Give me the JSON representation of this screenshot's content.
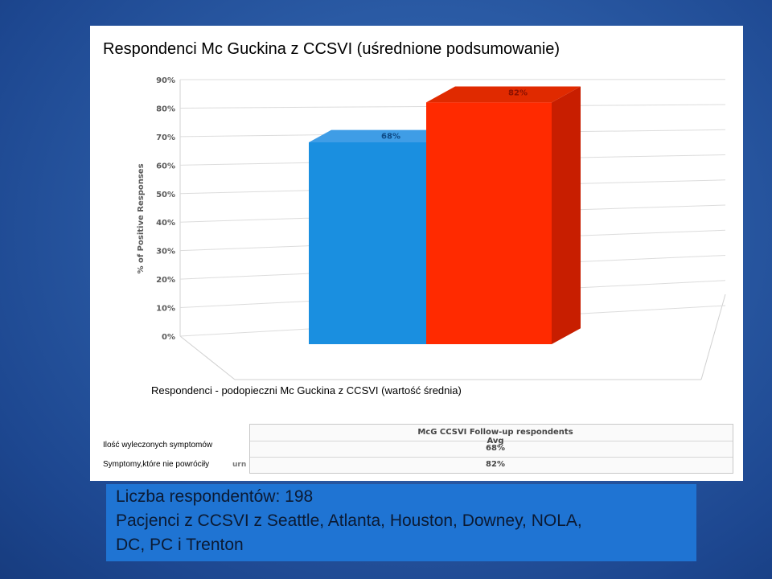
{
  "chart_data": {
    "type": "bar",
    "title": "Respondenci Mc Guckina z CCSVI (uśrednione podsumowanie)",
    "ylabel": "% of Positive Responses",
    "xlabel": "Respondenci - podopieczni Mc Guckina z CCSVI (wartość średnia)",
    "ylim": [
      0,
      90
    ],
    "yticks": [
      "0%",
      "10%",
      "20%",
      "30%",
      "40%",
      "50%",
      "60%",
      "70%",
      "80%",
      "90%"
    ],
    "categories": [
      "Ilość wyleczonych symptomów",
      "Symptomy,które nie powróciły"
    ],
    "values": [
      68,
      82
    ],
    "data_labels": [
      "68%",
      "82%"
    ],
    "colors": [
      "#1a8fe0",
      "#ff2a00"
    ],
    "grid": true,
    "legend": "none"
  },
  "table": {
    "header": "McG CCSVI Follow-up respondents Avg",
    "rows": [
      {
        "label": "Ilość wyleczonych symptomów",
        "fragment": "",
        "value": "68%"
      },
      {
        "label": "Symptomy,które nie powróciły",
        "fragment": "urn",
        "value": "82%"
      }
    ]
  },
  "info": {
    "line1": "Liczba respondentów: 198",
    "line2": "Pacjenci z CCSVI z Seattle, Atlanta, Houston, Downey, NOLA,",
    "line3": "DC, PC i Trenton"
  }
}
